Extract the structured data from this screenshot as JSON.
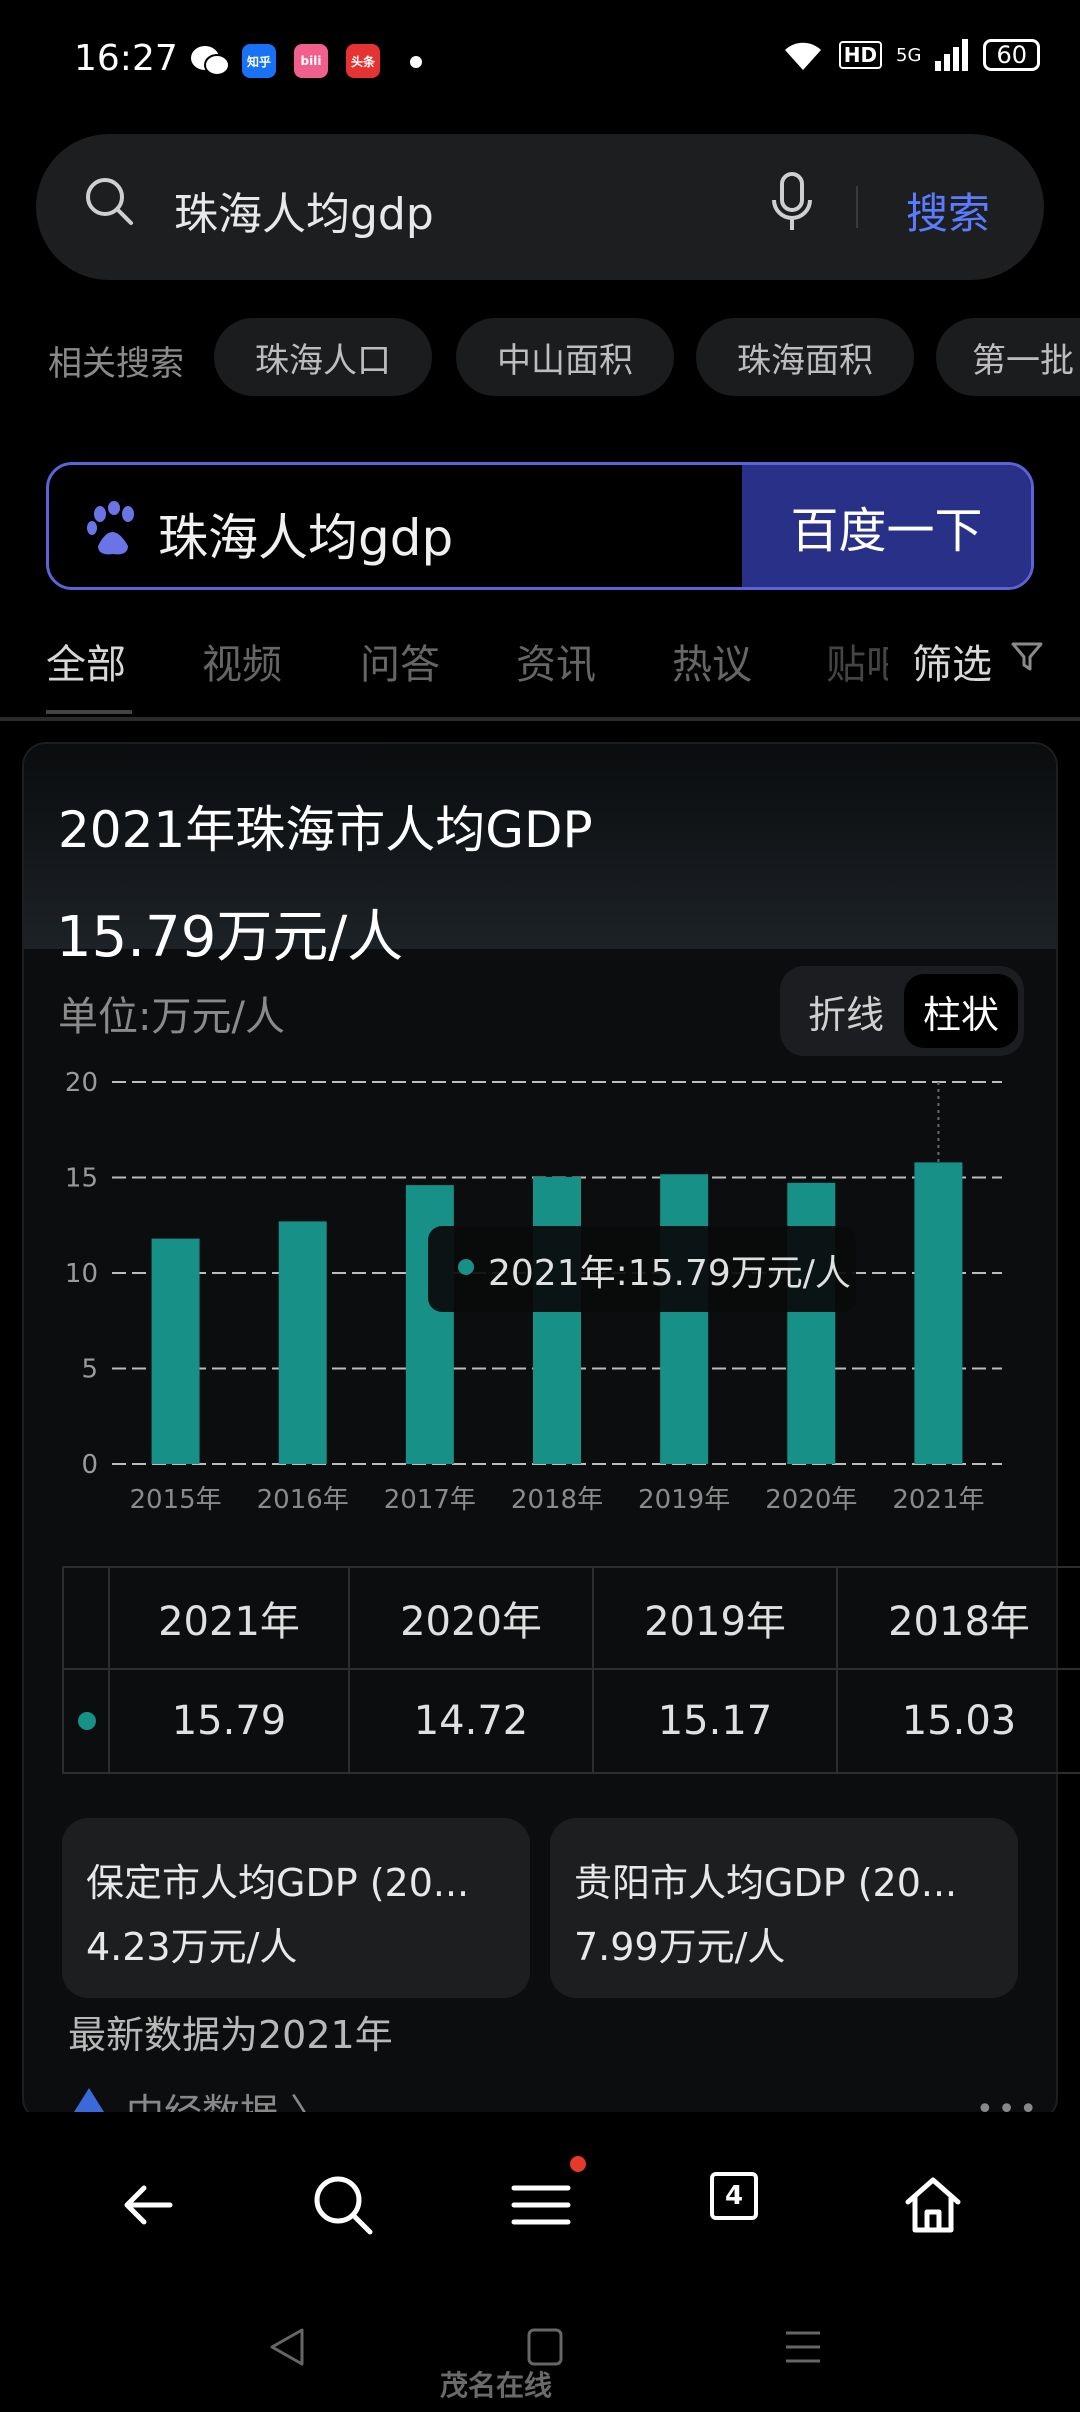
{
  "status_bar": {
    "time": "16:27",
    "notifications": [
      {
        "name": "wechat-icon",
        "text": "",
        "color": "#ffffff"
      },
      {
        "name": "zhihu-icon",
        "text": "知乎",
        "color": "#1772f6"
      },
      {
        "name": "bilibili-icon",
        "text": "bili",
        "color": "#f1608c"
      },
      {
        "name": "toutiao-icon",
        "text": "头条",
        "color": "#e53333"
      }
    ],
    "hd": "HD",
    "network": "5G",
    "battery": "60"
  },
  "search": {
    "query": "珠海人均gdp",
    "button": "搜索"
  },
  "related": {
    "label": "相关搜索",
    "items": [
      "珠海人口",
      "中山面积",
      "珠海面积",
      "第一批"
    ]
  },
  "baidu_box": {
    "query": "珠海人均gdp",
    "button": "百度一下"
  },
  "tabs": [
    "全部",
    "视频",
    "问答",
    "资讯",
    "热议",
    "贴吧"
  ],
  "filter": "筛选",
  "card": {
    "title": "2021年珠海市人均GDP",
    "value": "15.79万元/人",
    "unit": "单位:万元/人",
    "toggle": {
      "line": "折线",
      "bar": "柱状"
    },
    "tooltip": "2021年:15.79万元/人"
  },
  "chart_data": {
    "type": "bar",
    "categories": [
      "2015年",
      "2016年",
      "2017年",
      "2018年",
      "2019年",
      "2020年",
      "2021年"
    ],
    "values": [
      11.8,
      12.7,
      14.6,
      15.03,
      15.17,
      14.72,
      15.79
    ],
    "ylim": [
      0,
      20
    ],
    "yticks": [
      0,
      5,
      10,
      15,
      20
    ],
    "grid": true,
    "highlight_index": 6,
    "color": "#179088"
  },
  "table": {
    "headers": [
      "2021年",
      "2020年",
      "2019年",
      "2018年"
    ],
    "values": [
      "15.79",
      "14.72",
      "15.17",
      "15.03"
    ]
  },
  "related_cards": [
    {
      "title": "保定市人均GDP (20...",
      "value": "4.23万元/人"
    },
    {
      "title": "贵阳市人均GDP (20...",
      "value": "7.99万元/人"
    }
  ],
  "latest": "最新数据为2021年",
  "source": "中经数据 〉",
  "more": "•••",
  "tab_count": "4",
  "watermark": "茂名在线"
}
